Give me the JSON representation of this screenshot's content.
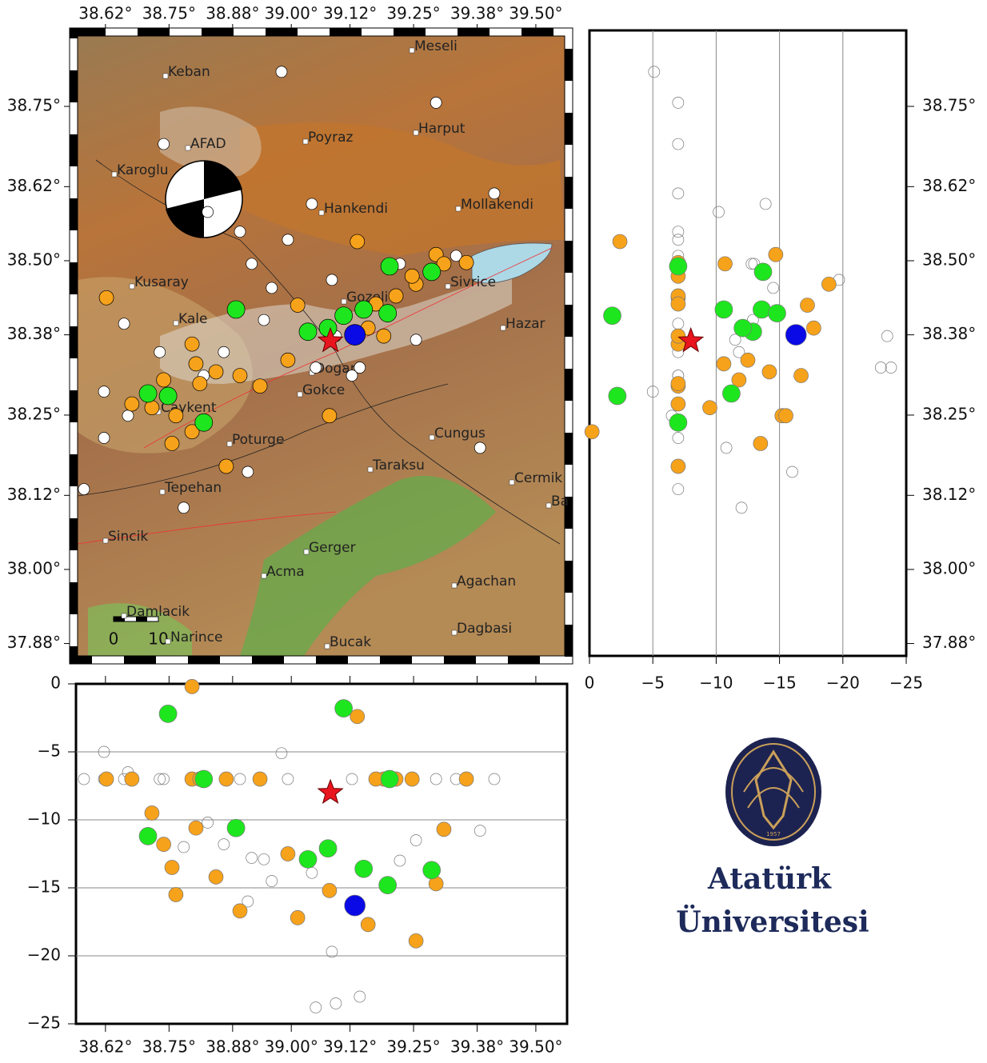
{
  "map": {
    "lon_lim": [
      38.563,
      39.559
    ],
    "lat_lim": [
      37.86,
      38.864
    ],
    "depth_lim": [
      -25,
      0
    ],
    "lon_ticks": [
      {
        "value": 38.62,
        "label": "38.62°"
      },
      {
        "value": 38.75,
        "label": "38.75°"
      },
      {
        "value": 38.88,
        "label": "38.88°"
      },
      {
        "value": 39.0,
        "label": "39.00°"
      },
      {
        "value": 39.12,
        "label": "39.12°"
      },
      {
        "value": 39.25,
        "label": "39.25°"
      },
      {
        "value": 39.38,
        "label": "39.38°"
      },
      {
        "value": 39.5,
        "label": "39.50°"
      }
    ],
    "lat_ticks": [
      {
        "value": 38.75,
        "label": "38.75°"
      },
      {
        "value": 38.62,
        "label": "38.62°"
      },
      {
        "value": 38.5,
        "label": "38.50°"
      },
      {
        "value": 38.38,
        "label": "38.38°"
      },
      {
        "value": 38.25,
        "label": "38.25°"
      },
      {
        "value": 38.12,
        "label": "38.12°"
      },
      {
        "value": 38.0,
        "label": "38.00°"
      },
      {
        "value": 37.88,
        "label": "37.88°"
      }
    ],
    "depth_ticks": [
      0,
      {
        "value": -5,
        "label": "−5"
      },
      {
        "value": -10,
        "label": "−10"
      },
      {
        "value": -15,
        "label": "−15"
      },
      {
        "value": -20,
        "label": "−20"
      },
      {
        "value": -25,
        "label": "−25"
      }
    ],
    "places": [
      "Meseli",
      "Keban",
      "Poyraz",
      "Harput",
      "AFAD",
      "Karoglu",
      "Hankendi",
      "Mollakendi",
      "Kusaray",
      "Sivrice",
      "Gozeli",
      "Kale",
      "Hazar",
      "Dogan",
      "Gokce",
      "Caykent",
      "Poturge",
      "Cungus",
      "Taraksu",
      "Tepehan",
      "Cermik",
      "Ba",
      "Sincik",
      "Gerger",
      "Acma",
      "Agachan",
      "Damlacik",
      "Narince",
      "Dagbasi",
      "Bucak"
    ],
    "scale_labels": [
      "0",
      "10"
    ],
    "event_groups": [
      {
        "color": "#ffffff",
        "lon": [
          38.617,
          38.658,
          38.739,
          38.829,
          38.895,
          38.919,
          38.98,
          39.042,
          39.091,
          39.124,
          39.255,
          39.296,
          39.415,
          39.386,
          38.911,
          38.78,
          38.576,
          38.666,
          38.96,
          38.993,
          38.862,
          38.731,
          38.617,
          39.083,
          39.222,
          39.337,
          38.944,
          38.821,
          39.05,
          39.14
        ],
        "lat": [
          38.288,
          38.398,
          38.689,
          38.579,
          38.547,
          38.495,
          38.806,
          38.592,
          38.378,
          38.314,
          38.372,
          38.756,
          38.609,
          38.197,
          38.158,
          38.1,
          38.13,
          38.249,
          38.456,
          38.534,
          38.352,
          38.352,
          38.213,
          38.469,
          38.495,
          38.508,
          38.404,
          38.314,
          38.327,
          38.327
        ],
        "depth": [
          -5,
          -7,
          -7,
          -10.2,
          -7,
          -12.8,
          -5.1,
          -13.9,
          -23.5,
          -7,
          -11.5,
          -7,
          -7,
          -10.8,
          -16,
          -12,
          -7,
          -6.5,
          -14.5,
          -7,
          -11.8,
          -7,
          -7,
          -19.7,
          -13,
          -7,
          -12.9,
          -7,
          -23.8,
          -23
        ]
      },
      {
        "color": "#f7a21b",
        "lon": [
          38.622,
          38.674,
          38.739,
          38.797,
          38.805,
          38.846,
          38.895,
          38.936,
          39.013,
          39.078,
          39.135,
          39.214,
          39.255,
          39.296,
          39.312,
          39.358,
          38.764,
          38.797,
          38.867,
          39.157,
          39.189,
          39.247,
          38.993,
          38.813,
          38.715,
          38.756,
          39.173
        ],
        "lat": [
          38.44,
          38.268,
          38.307,
          38.365,
          38.333,
          38.32,
          38.314,
          38.297,
          38.428,
          38.249,
          38.531,
          38.443,
          38.462,
          38.51,
          38.495,
          38.497,
          38.249,
          38.223,
          38.167,
          38.391,
          38.378,
          38.475,
          38.339,
          38.301,
          38.262,
          38.204,
          38.43
        ],
        "depth": [
          -7,
          -7,
          -11.8,
          -7,
          -10.6,
          -14.2,
          -16.7,
          -7,
          -17.2,
          -15.2,
          -2.4,
          -7,
          -18.9,
          -14.7,
          -10.7,
          -7,
          -15.5,
          -0.2,
          -7,
          -17.7,
          -7,
          -7,
          -12.5,
          -7,
          -9.5,
          -13.5,
          -7
        ]
      },
      {
        "color": "#1ee61e",
        "lon": [
          38.707,
          38.748,
          38.821,
          38.887,
          39.034,
          39.075,
          39.107,
          39.148,
          39.201,
          39.197,
          39.287
        ],
        "lat": [
          38.285,
          38.281,
          38.238,
          38.421,
          38.385,
          38.391,
          38.411,
          38.421,
          38.491,
          38.415,
          38.482
        ],
        "depth": [
          -11.2,
          -2.2,
          -7,
          -10.6,
          -12.9,
          -12.1,
          -1.8,
          -13.6,
          -7,
          -14.8,
          -13.7
        ]
      },
      {
        "color": "#0a0ae6",
        "lon": [
          39.13
        ],
        "lat": [
          38.38
        ],
        "depth": [
          -16.3
        ]
      },
      {
        "color": "#e8141e",
        "lon": [
          39.08
        ],
        "lat": [
          38.37
        ],
        "depth": [
          -8
        ]
      }
    ]
  },
  "logo": {
    "year": "1957",
    "line1": "Atatürk",
    "line2": "Üniversitesi"
  }
}
